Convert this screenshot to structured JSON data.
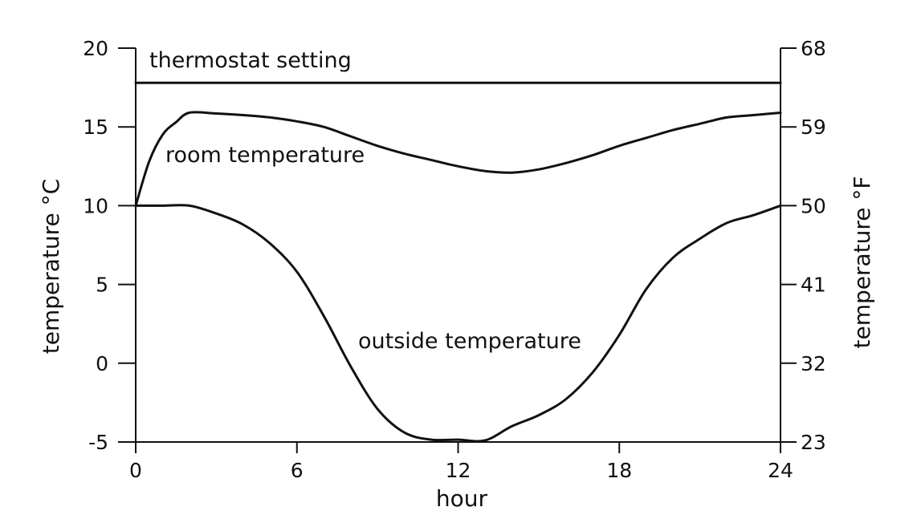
{
  "chart_data": {
    "type": "line",
    "xlabel": "hour",
    "ylabel_left": "temperature °C",
    "ylabel_right": "temperature °F",
    "xlim": [
      0,
      24
    ],
    "ylim": [
      -5,
      20
    ],
    "xticks": [
      0,
      6,
      12,
      18,
      24
    ],
    "yticks_left": [
      20,
      15,
      10,
      5,
      0,
      -5
    ],
    "yticks_right": [
      68,
      59,
      50,
      41,
      32,
      23
    ],
    "grid": false,
    "series": [
      {
        "name": "thermostat setting",
        "x": [
          0,
          24
        ],
        "y": [
          17.8,
          17.8
        ]
      },
      {
        "name": "room temperature",
        "x": [
          0,
          0.5,
          1,
          1.5,
          2,
          3,
          4,
          5,
          6,
          7,
          8,
          9,
          10,
          11,
          12,
          13,
          14,
          15,
          16,
          17,
          18,
          19,
          20,
          21,
          22,
          23,
          24
        ],
        "y": [
          10,
          12.8,
          14.5,
          15.3,
          15.9,
          15.85,
          15.75,
          15.6,
          15.35,
          15.0,
          14.4,
          13.8,
          13.3,
          12.9,
          12.5,
          12.2,
          12.1,
          12.3,
          12.7,
          13.2,
          13.8,
          14.3,
          14.8,
          15.2,
          15.6,
          15.75,
          15.9
        ]
      },
      {
        "name": "outside temperature",
        "x": [
          0,
          1,
          2,
          3,
          4,
          5,
          6,
          7,
          8,
          9,
          10,
          11,
          12,
          13,
          14,
          15,
          16,
          17,
          18,
          19,
          20,
          21,
          22,
          23,
          24
        ],
        "y": [
          10,
          10,
          10,
          9.5,
          8.8,
          7.6,
          5.8,
          3.0,
          -0.2,
          -2.9,
          -4.4,
          -4.85,
          -4.85,
          -4.9,
          -4.0,
          -3.3,
          -2.3,
          -0.6,
          1.8,
          4.7,
          6.7,
          7.9,
          8.9,
          9.4,
          10
        ]
      }
    ]
  }
}
